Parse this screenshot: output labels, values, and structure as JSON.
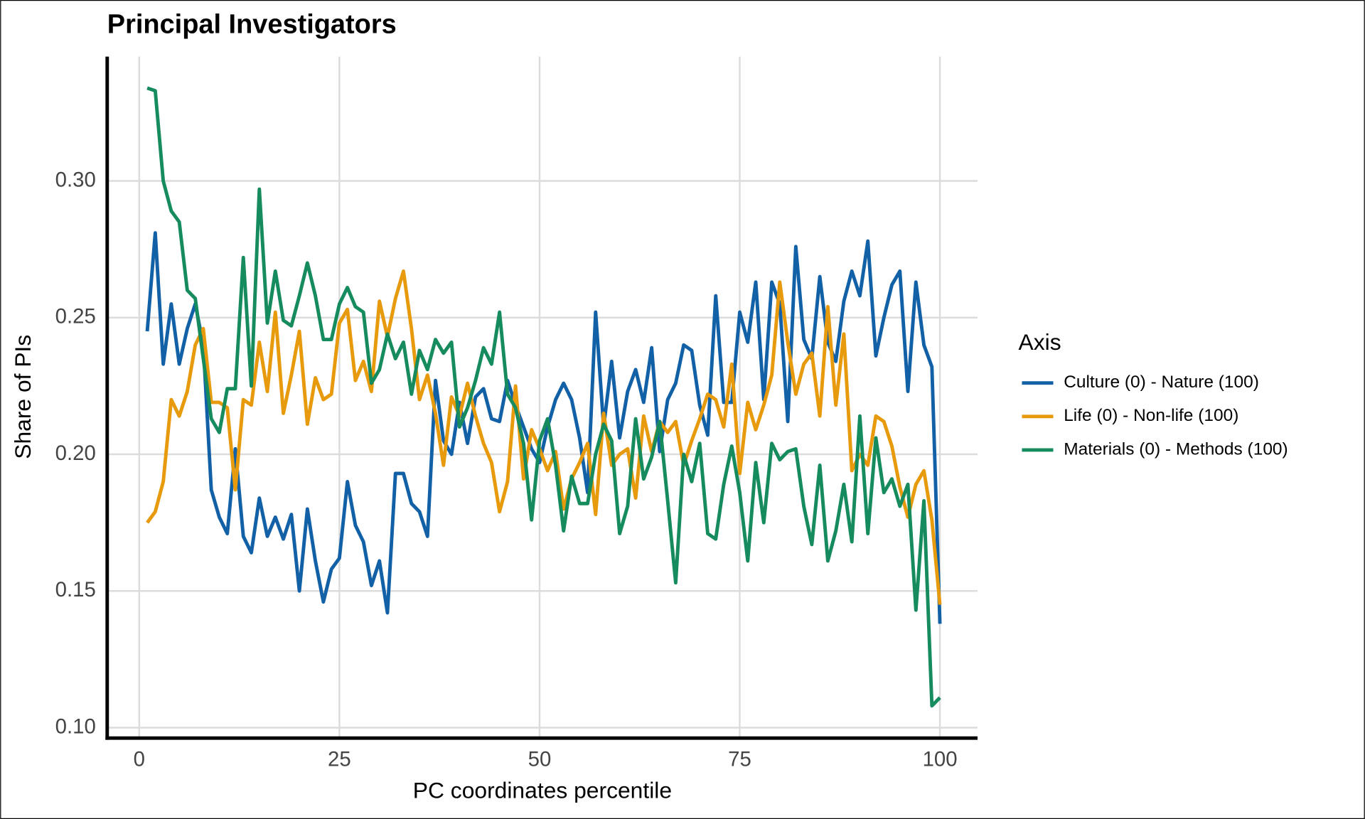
{
  "chart_data": {
    "type": "line",
    "title": "Principal Investigators",
    "x_label": "PC coordinates percentile",
    "y_label": "Share of PIs",
    "legend_title": "Axis",
    "legend": "right",
    "grid": true,
    "xlim": [
      -4,
      104.7
    ],
    "ylim": [
      0.0962,
      0.3455
    ],
    "xticks": [
      0,
      25,
      50,
      75,
      100
    ],
    "yticks": [
      {
        "value": 0.1,
        "label": "0.10"
      },
      {
        "value": 0.15,
        "label": "0.15"
      },
      {
        "value": 0.2,
        "label": "0.20"
      },
      {
        "value": 0.25,
        "label": "0.25"
      },
      {
        "value": 0.3,
        "label": "0.30"
      }
    ],
    "x": [
      1,
      2,
      3,
      4,
      5,
      6,
      7,
      8,
      9,
      10,
      11,
      12,
      13,
      14,
      15,
      16,
      17,
      18,
      19,
      20,
      21,
      22,
      23,
      24,
      25,
      26,
      27,
      28,
      29,
      30,
      31,
      32,
      33,
      34,
      35,
      36,
      37,
      38,
      39,
      40,
      41,
      42,
      43,
      44,
      45,
      46,
      47,
      48,
      49,
      50,
      51,
      52,
      53,
      54,
      55,
      56,
      57,
      58,
      59,
      60,
      61,
      62,
      63,
      64,
      65,
      66,
      67,
      68,
      69,
      70,
      71,
      72,
      73,
      74,
      75,
      76,
      77,
      78,
      79,
      80,
      81,
      82,
      83,
      84,
      85,
      86,
      87,
      88,
      89,
      90,
      91,
      92,
      93,
      94,
      95,
      96,
      97,
      98,
      99,
      100
    ],
    "series": [
      {
        "name": "Culture (0) - Nature (100)",
        "color": "#1261a6",
        "values": [
          0.245,
          0.281,
          0.233,
          0.255,
          0.233,
          0.246,
          0.255,
          0.24,
          0.187,
          0.177,
          0.171,
          0.202,
          0.17,
          0.164,
          0.184,
          0.17,
          0.177,
          0.169,
          0.178,
          0.15,
          0.18,
          0.161,
          0.146,
          0.158,
          0.162,
          0.19,
          0.174,
          0.168,
          0.152,
          0.161,
          0.142,
          0.193,
          0.193,
          0.182,
          0.179,
          0.17,
          0.227,
          0.205,
          0.2,
          0.219,
          0.204,
          0.221,
          0.224,
          0.213,
          0.212,
          0.227,
          0.218,
          0.21,
          0.202,
          0.197,
          0.21,
          0.22,
          0.226,
          0.22,
          0.206,
          0.186,
          0.252,
          0.21,
          0.234,
          0.206,
          0.223,
          0.231,
          0.219,
          0.239,
          0.201,
          0.22,
          0.226,
          0.24,
          0.238,
          0.218,
          0.207,
          0.258,
          0.219,
          0.219,
          0.252,
          0.241,
          0.263,
          0.22,
          0.263,
          0.255,
          0.212,
          0.276,
          0.242,
          0.235,
          0.265,
          0.241,
          0.234,
          0.256,
          0.267,
          0.258,
          0.278,
          0.236,
          0.25,
          0.262,
          0.267,
          0.223,
          0.263,
          0.24,
          0.232,
          0.138
        ]
      },
      {
        "name": "Life (0) - Non-life (100)",
        "color": "#e69a0c",
        "values": [
          0.175,
          0.179,
          0.19,
          0.22,
          0.214,
          0.223,
          0.24,
          0.246,
          0.219,
          0.219,
          0.217,
          0.187,
          0.22,
          0.218,
          0.241,
          0.223,
          0.252,
          0.215,
          0.229,
          0.245,
          0.211,
          0.228,
          0.22,
          0.222,
          0.248,
          0.253,
          0.227,
          0.234,
          0.223,
          0.256,
          0.243,
          0.257,
          0.267,
          0.246,
          0.22,
          0.229,
          0.215,
          0.196,
          0.221,
          0.214,
          0.226,
          0.214,
          0.204,
          0.197,
          0.179,
          0.19,
          0.225,
          0.191,
          0.209,
          0.202,
          0.194,
          0.201,
          0.18,
          0.191,
          0.197,
          0.204,
          0.178,
          0.215,
          0.196,
          0.2,
          0.202,
          0.184,
          0.214,
          0.201,
          0.212,
          0.208,
          0.212,
          0.196,
          0.205,
          0.213,
          0.222,
          0.22,
          0.21,
          0.233,
          0.193,
          0.219,
          0.209,
          0.218,
          0.229,
          0.263,
          0.241,
          0.222,
          0.233,
          0.237,
          0.214,
          0.254,
          0.218,
          0.244,
          0.194,
          0.2,
          0.196,
          0.214,
          0.212,
          0.203,
          0.188,
          0.177,
          0.189,
          0.194,
          0.176,
          0.145
        ]
      },
      {
        "name": "Materials (0) - Methods (100)",
        "color": "#168b5e",
        "values": [
          0.334,
          0.333,
          0.3,
          0.289,
          0.285,
          0.26,
          0.257,
          0.235,
          0.213,
          0.208,
          0.224,
          0.224,
          0.272,
          0.225,
          0.297,
          0.248,
          0.267,
          0.249,
          0.247,
          0.258,
          0.27,
          0.258,
          0.242,
          0.242,
          0.255,
          0.261,
          0.254,
          0.252,
          0.226,
          0.231,
          0.244,
          0.235,
          0.241,
          0.222,
          0.238,
          0.231,
          0.242,
          0.237,
          0.241,
          0.21,
          0.217,
          0.227,
          0.239,
          0.233,
          0.252,
          0.222,
          0.217,
          0.204,
          0.176,
          0.205,
          0.213,
          0.196,
          0.172,
          0.192,
          0.182,
          0.182,
          0.2,
          0.211,
          0.205,
          0.171,
          0.181,
          0.213,
          0.191,
          0.199,
          0.212,
          0.183,
          0.153,
          0.2,
          0.19,
          0.204,
          0.171,
          0.169,
          0.189,
          0.203,
          0.186,
          0.161,
          0.197,
          0.175,
          0.204,
          0.198,
          0.201,
          0.202,
          0.181,
          0.167,
          0.196,
          0.161,
          0.172,
          0.189,
          0.168,
          0.214,
          0.171,
          0.206,
          0.186,
          0.191,
          0.181,
          0.189,
          0.143,
          0.183,
          0.108,
          0.111
        ]
      }
    ]
  }
}
